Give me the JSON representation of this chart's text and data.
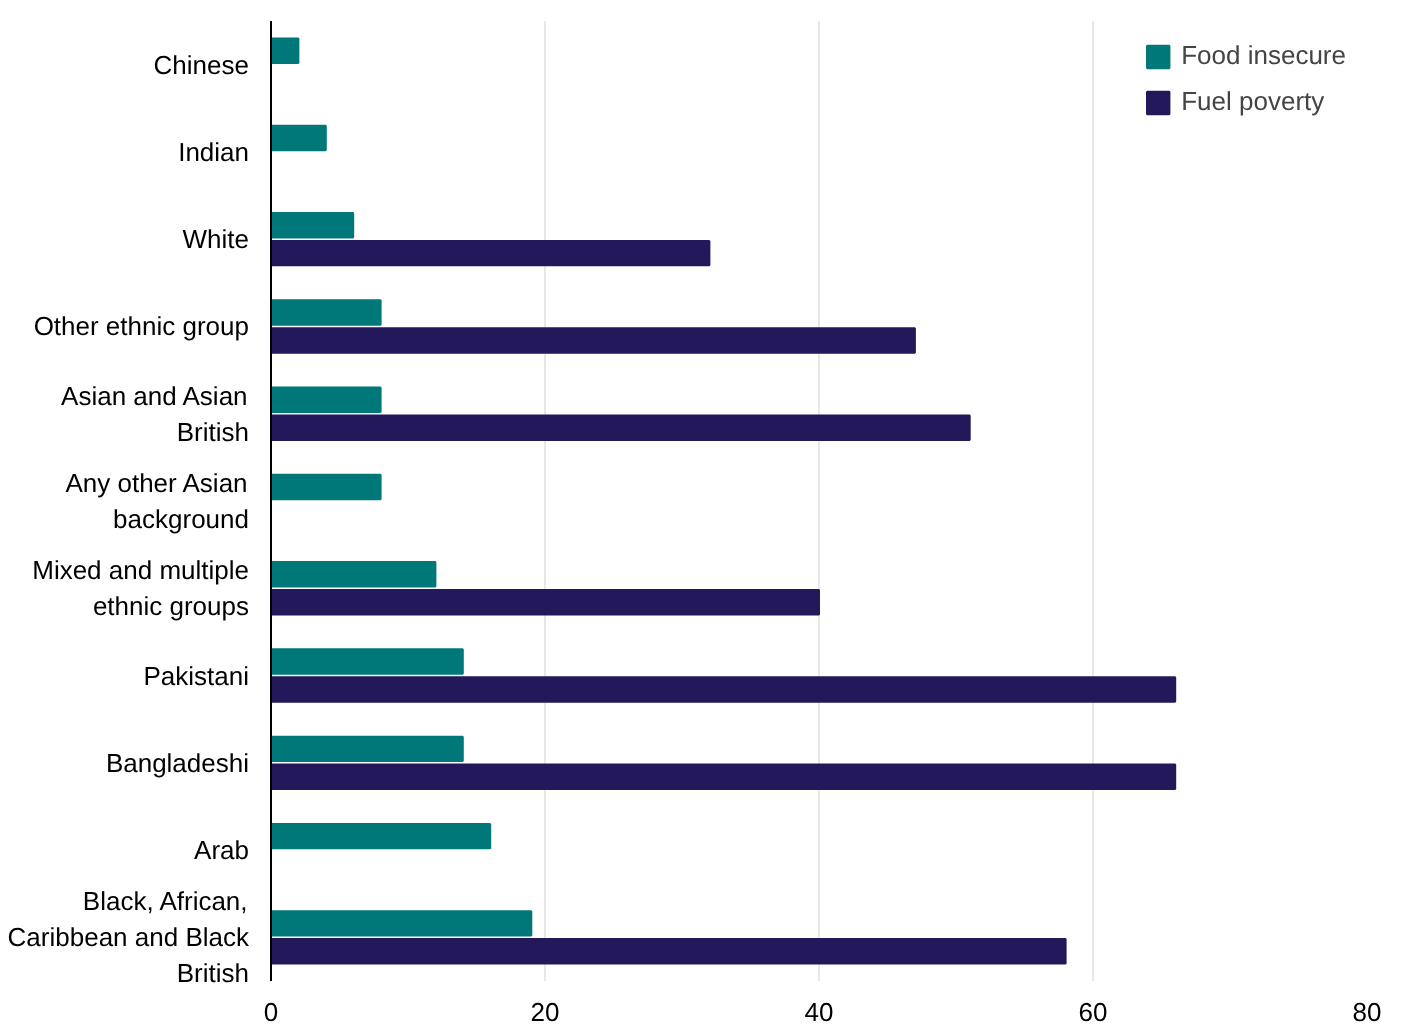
{
  "chart_data": {
    "type": "bar",
    "orientation": "horizontal",
    "categories": [
      "Chinese",
      "Indian",
      "White",
      "Other ethnic group",
      "Asian and Asian British",
      "Any other Asian background",
      "Mixed and multiple ethnic groups",
      "Pakistani",
      "Bangladeshi",
      "Arab",
      "Black, African, Caribbean and Black British"
    ],
    "series": [
      {
        "name": "Food insecure",
        "color": "#00787a",
        "values": [
          2,
          4,
          6,
          8,
          8,
          8,
          12,
          14,
          14,
          16,
          19
        ]
      },
      {
        "name": "Fuel poverty",
        "color": "#23185a",
        "values": [
          null,
          null,
          32,
          47,
          51,
          null,
          40,
          66,
          66,
          null,
          58
        ]
      }
    ],
    "xlim": [
      0,
      80
    ],
    "xticks": [
      0,
      20,
      40,
      60,
      80
    ],
    "grid": "x",
    "legend": "top right"
  }
}
